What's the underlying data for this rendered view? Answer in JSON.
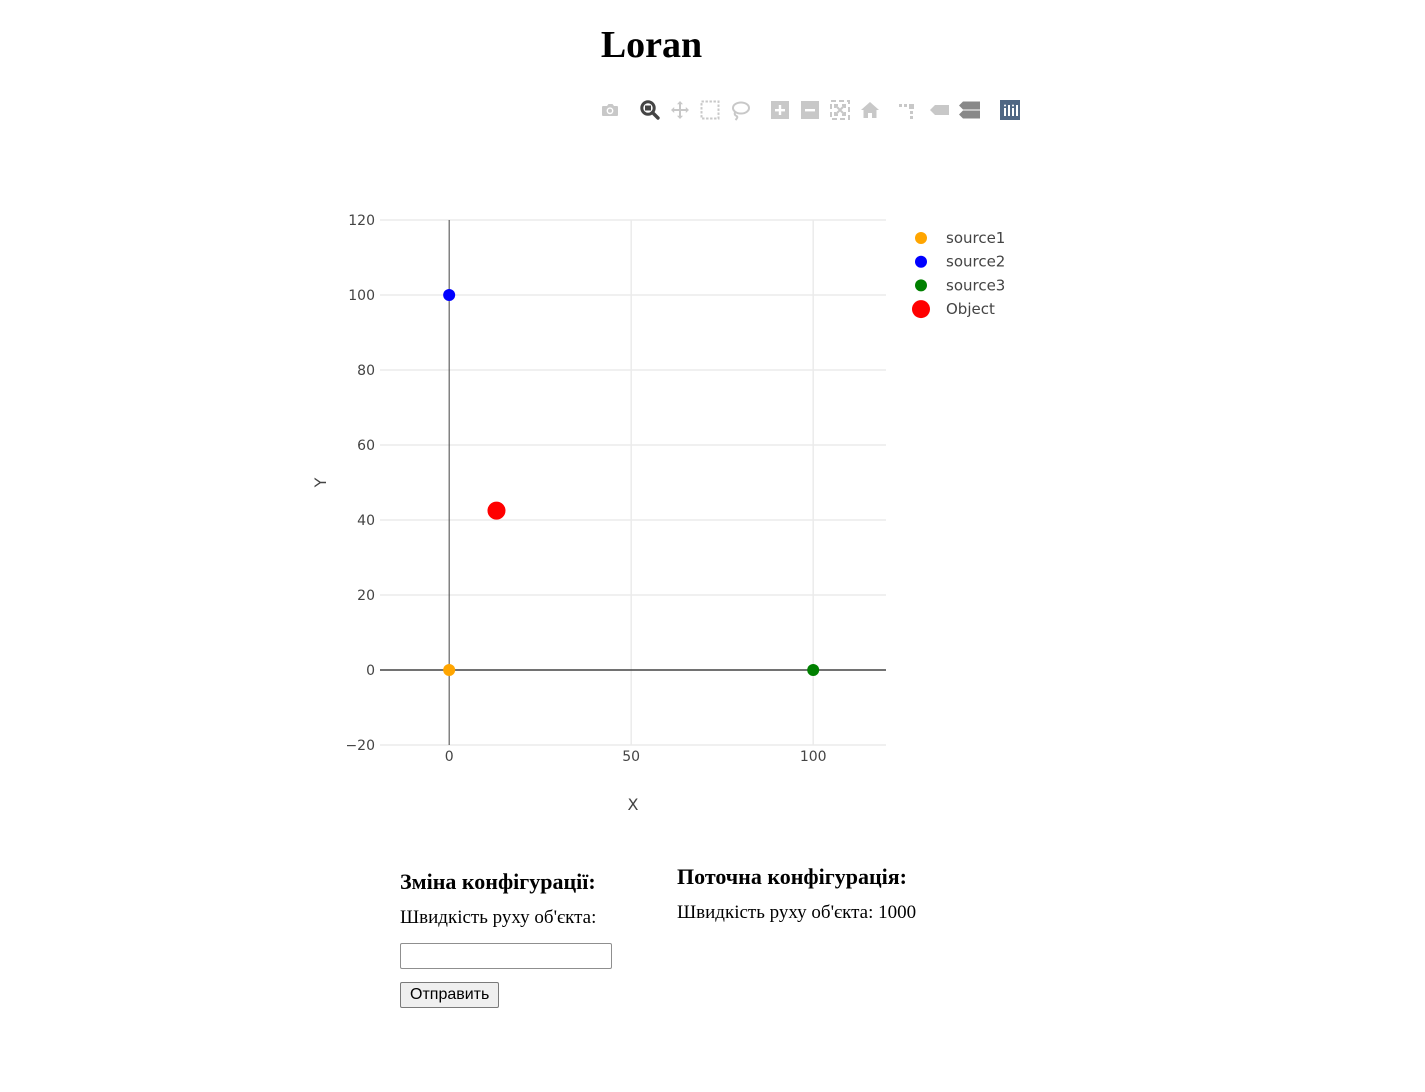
{
  "page": {
    "title": "Loran"
  },
  "modebar": {
    "icons": [
      "camera-icon",
      "zoom-icon",
      "pan-icon",
      "box-select-icon",
      "lasso-select-icon",
      "zoom-in-icon",
      "zoom-out-icon",
      "autoscale-icon",
      "reset-axes-icon",
      "toggle-spike-lines-icon",
      "hover-closest-icon",
      "hover-compare-icon",
      "plotly-logo-icon"
    ],
    "active_color": "#444444",
    "inactive_color": "#c8c8c8",
    "logo_color": "#506784"
  },
  "chart_data": {
    "type": "scatter",
    "title": "",
    "xlabel": "X",
    "ylabel": "Y",
    "xlim": [
      -19,
      120
    ],
    "ylim": [
      -20,
      120
    ],
    "xticks": [
      0,
      50,
      100
    ],
    "yticks": [
      -20,
      0,
      20,
      40,
      60,
      80,
      100,
      120
    ],
    "xtick_labels": [
      "0",
      "50",
      "100"
    ],
    "ytick_labels": [
      "−20",
      "0",
      "20",
      "40",
      "60",
      "80",
      "100",
      "120"
    ],
    "grid": true,
    "legend_position": "top-right",
    "series": [
      {
        "name": "source1",
        "color": "#FFA500",
        "size": "small",
        "points": [
          {
            "x": 0,
            "y": 0
          }
        ]
      },
      {
        "name": "source2",
        "color": "#0000FF",
        "size": "small",
        "points": [
          {
            "x": 0,
            "y": 100
          }
        ]
      },
      {
        "name": "source3",
        "color": "#008000",
        "size": "small",
        "points": [
          {
            "x": 100,
            "y": 0
          }
        ]
      },
      {
        "name": "Object",
        "color": "#FF0000",
        "size": "large",
        "points": [
          {
            "x": 13,
            "y": 42.5
          }
        ]
      }
    ]
  },
  "config_form": {
    "heading": "Зміна конфігурації:",
    "speed_label": "Швидкість руху об'єкта:",
    "speed_value": "",
    "speed_placeholder": "",
    "submit_label": "Отправить"
  },
  "current_config": {
    "heading": "Поточна конфігурація:",
    "speed_text": "Швидкість руху об'єкта: 1000"
  }
}
